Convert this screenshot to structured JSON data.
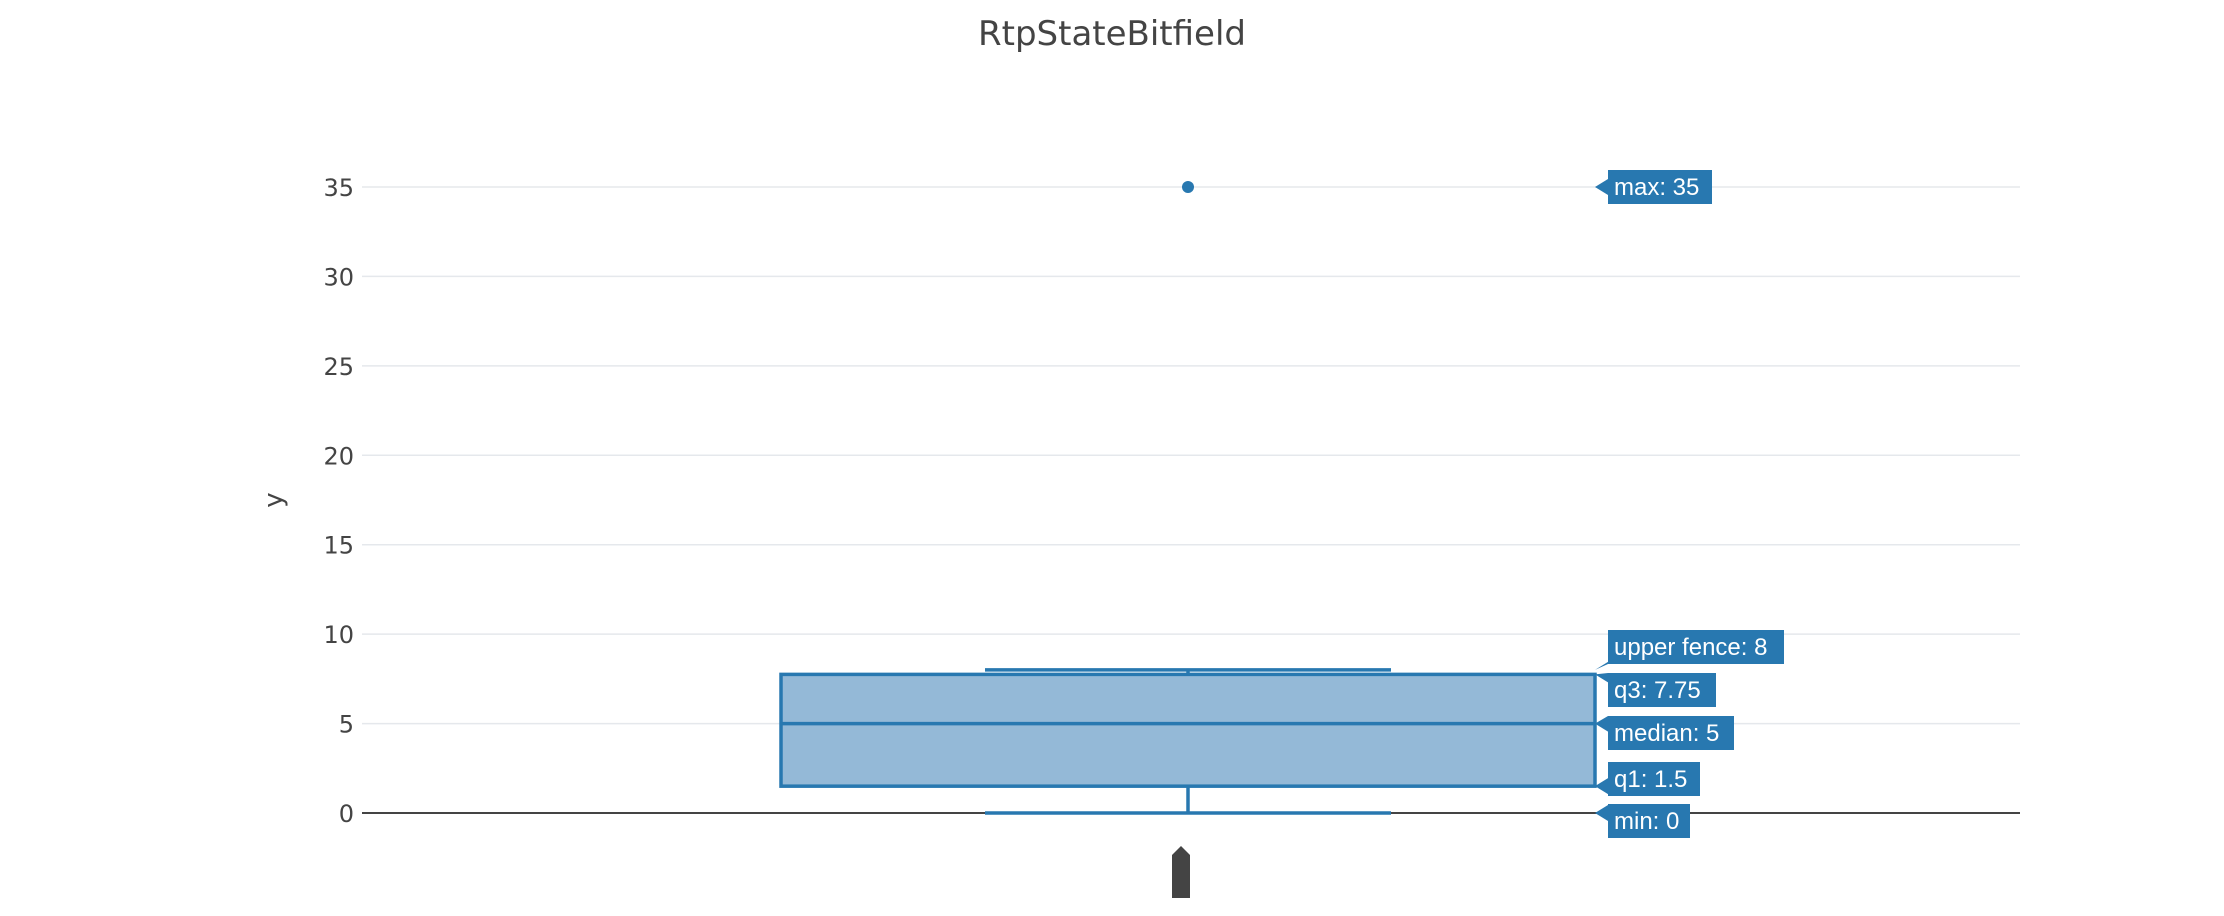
{
  "chart_data": {
    "type": "box",
    "title": "RtpStateBitfield",
    "xlabel": "",
    "ylabel": "y",
    "ylim": [
      -2,
      38
    ],
    "yticks": [
      "0",
      "5",
      "10",
      "15",
      "20",
      "25",
      "30",
      "35"
    ],
    "grid": true,
    "box": {
      "min": 0,
      "q1": 1.5,
      "median": 5,
      "q3": 7.75,
      "upper_fence": 8,
      "max": 35,
      "outliers": [
        35
      ]
    },
    "hover_labels": [
      {
        "key": "max",
        "text": "max: 35",
        "value": 35
      },
      {
        "key": "upper_fence",
        "text": "upper fence: 8",
        "value": 8
      },
      {
        "key": "q3",
        "text": "q3: 7.75",
        "value": 7.75
      },
      {
        "key": "median",
        "text": "median: 5",
        "value": 5
      },
      {
        "key": "q1",
        "text": "q1: 1.5",
        "value": 1.5
      },
      {
        "key": "min",
        "text": "min: 0",
        "value": 0
      }
    ],
    "colors": {
      "box_line": "#2878b0",
      "box_fill": "#94b9d7",
      "label_bg": "#2878b0",
      "label_text": "#ffffff",
      "grid": "#e5e8ec",
      "zero_line": "#444444",
      "text": "#444444"
    }
  }
}
